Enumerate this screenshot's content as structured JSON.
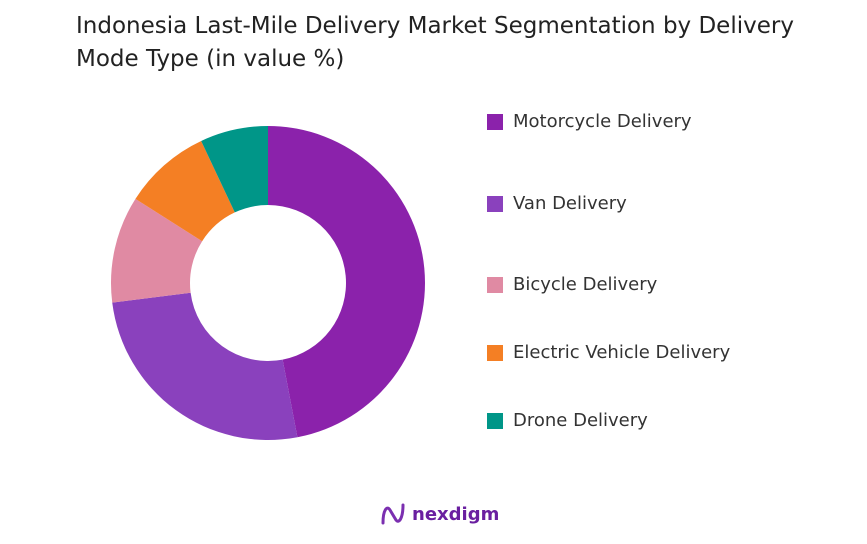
{
  "chart_data": {
    "type": "pie",
    "donut": true,
    "title": "Indonesia Last-Mile Delivery Market Segmentation by Delivery Mode Type (in value %)",
    "categories": [
      "Motorcycle Delivery",
      "Van Delivery",
      "Bicycle Delivery",
      "Electric Vehicle Delivery",
      "Drone Delivery"
    ],
    "values": [
      47,
      26,
      11,
      9,
      7
    ],
    "colors": [
      "#8b22ab",
      "#8a41bd",
      "#e08aa3",
      "#f47f24",
      "#009688"
    ],
    "legend_position": "right"
  },
  "logo": {
    "text": "nexdigm"
  }
}
